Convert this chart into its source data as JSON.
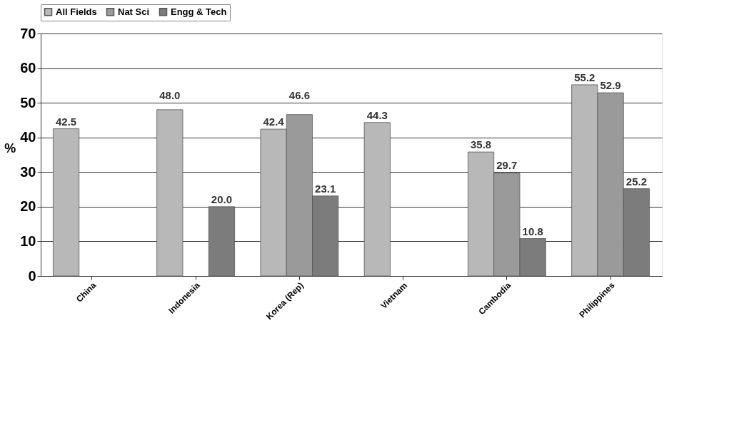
{
  "chart_data": {
    "type": "bar",
    "ylabel": "%",
    "categories": [
      "China",
      "Indonesia",
      "Korea (Rep)",
      "Vietnam",
      "Cambodia",
      "Philippines"
    ],
    "series": [
      {
        "name": "All Fields",
        "color": "#b8b8b8",
        "values": [
          42.5,
          48.0,
          42.4,
          44.3,
          35.8,
          55.2
        ],
        "value_labels": [
          "42.5",
          "48.0",
          "42.4",
          "44.3",
          "35.8",
          "55.2"
        ]
      },
      {
        "name": "Nat Sci",
        "color": "#9a9a9a",
        "values": [
          null,
          null,
          46.6,
          null,
          29.7,
          52.9
        ],
        "value_labels": [
          null,
          null,
          "46.6",
          null,
          "29.7",
          "52.9"
        ]
      },
      {
        "name": "Engg & Tech",
        "color": "#7c7c7c",
        "values": [
          null,
          20.0,
          23.1,
          null,
          10.8,
          25.2
        ],
        "value_labels": [
          null,
          "20.0",
          "23.1",
          null,
          "10.8",
          "25.2"
        ]
      }
    ],
    "ylim": [
      0,
      70
    ],
    "yticks": [
      0,
      10,
      20,
      30,
      40,
      50,
      60,
      70
    ],
    "grid": "y",
    "legend": "top"
  }
}
